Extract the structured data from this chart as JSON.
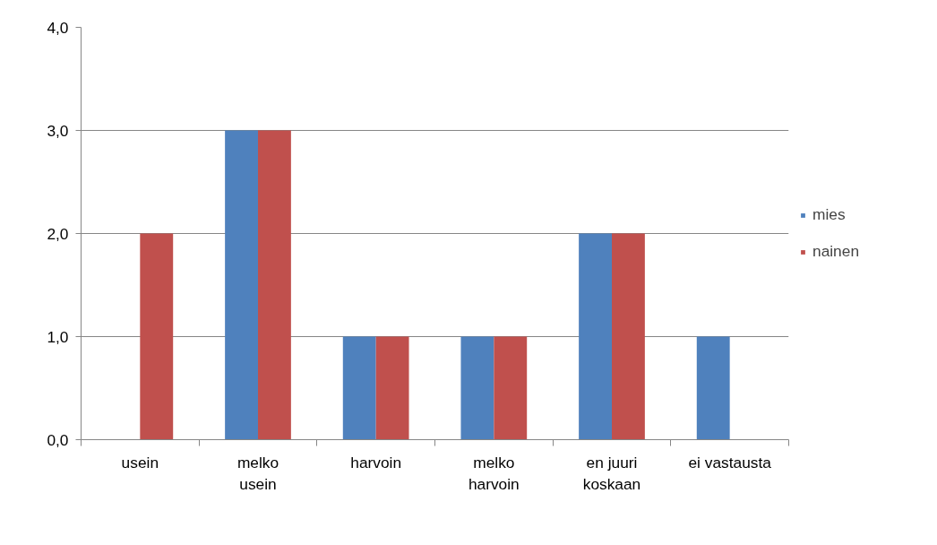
{
  "chart_data": {
    "type": "bar",
    "categories": [
      "usein",
      "melko\nusein",
      "harvoin",
      "melko\nharvoin",
      "en juuri\nkoskaan",
      "ei vastausta"
    ],
    "series": [
      {
        "name": "mies",
        "color": "#4f81bd",
        "values": [
          0,
          3,
          1,
          1,
          2,
          1
        ]
      },
      {
        "name": "nainen",
        "color": "#c0504d",
        "values": [
          2,
          3,
          1,
          1,
          2,
          0
        ]
      }
    ],
    "ylim": [
      0,
      4
    ],
    "yticks": [
      {
        "value": 0,
        "label": "0,0"
      },
      {
        "value": 1,
        "label": "1,0"
      },
      {
        "value": 2,
        "label": "2,0"
      },
      {
        "value": 3,
        "label": "3,0"
      },
      {
        "value": 4,
        "label": "4,0"
      }
    ],
    "grid": "y",
    "legend": "right"
  }
}
